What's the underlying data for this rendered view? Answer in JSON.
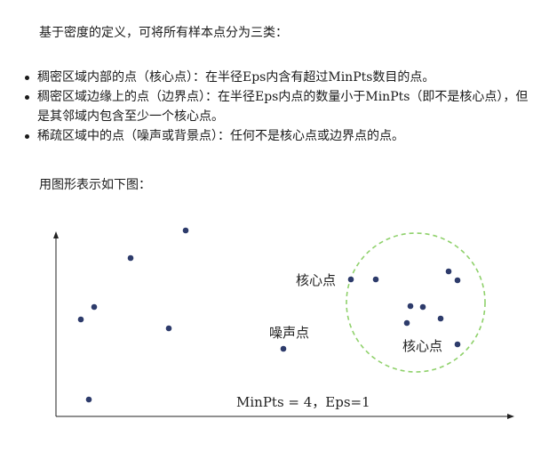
{
  "intro": "基于密度的定义，可将所有样本点分为三类：",
  "bullets": [
    "稠密区域内部的点（核心点）：在半径Eps内含有超过MinPts数目的点。",
    "稠密区域边缘上的点（边界点）：在半径Eps内点的数量小于MinPts（即不是核心点），但是其邻域内包含至少一个核心点。",
    "稀疏区域中的点（噪声或背景点）：任何不是核心点或边界点的点。"
  ],
  "figure_caption": "用图形表示如下图：",
  "figure": {
    "labels": {
      "core_point_1": "核心点",
      "noise_point": "噪声点",
      "core_point_2": "核心点",
      "params": "MinPts = 4，Eps=1"
    },
    "point_color": "#2d3b6b",
    "circle_color": "#8fd16b"
  }
}
